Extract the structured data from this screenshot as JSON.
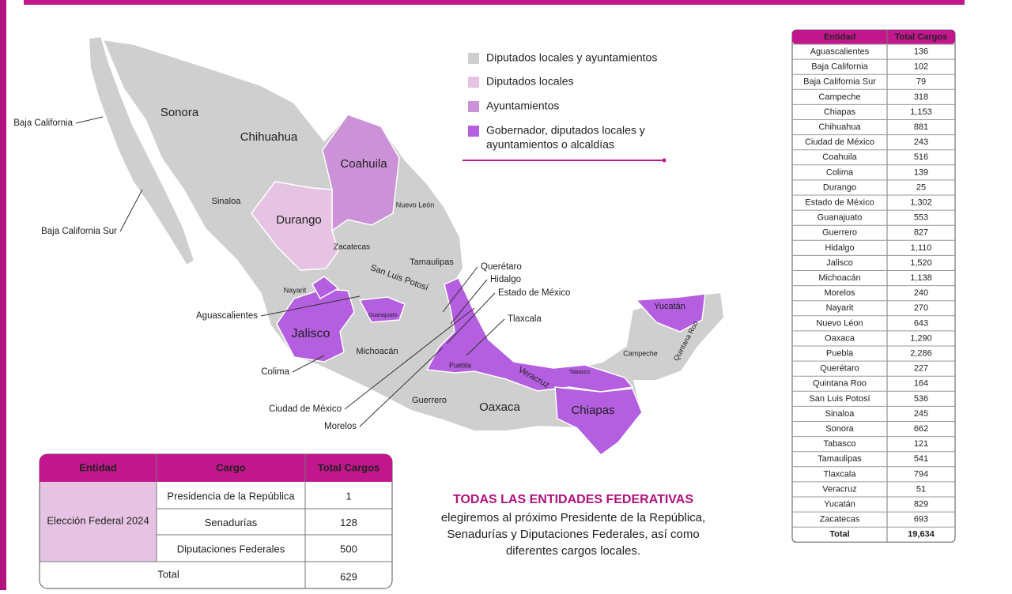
{
  "legend": [
    {
      "label": "Diputados locales y ayuntamientos",
      "color": "#cfcfcf"
    },
    {
      "label": "Diputados locales",
      "color": "#e6c3e2"
    },
    {
      "label": "Ayuntamientos",
      "color": "#cc92d8"
    },
    {
      "label": "Gobernador, diputados locales y",
      "label2": "ayuntamientos o alcaldías",
      "color": "#b45ee0"
    }
  ],
  "map": {
    "labels": [
      "Sonora",
      "Chihuahua",
      "Coahuila",
      "Durango",
      "Sinaloa",
      "Nuevo León",
      "Zacatecas",
      "Tamaulipas",
      "San Luis Potosí",
      "Nayarit",
      "Guanajuato",
      "Jalisco",
      "Michoacán",
      "Puebla",
      "Veracruz",
      "Tabasco",
      "Chiapas",
      "Oaxaca",
      "Guerrero",
      "Campeche",
      "Yucatán",
      "Quintana Roo"
    ],
    "callouts": [
      "Baja California",
      "Baja California Sur",
      "Aguascalientes",
      "Colima",
      "Ciudad de México",
      "Morelos",
      "Querétaro",
      "Hidalgo",
      "Estado de México",
      "Tlaxcala"
    ]
  },
  "state_table": {
    "header": [
      "Entidad",
      "Total Cargos"
    ],
    "rows": [
      [
        "Aguascalientes",
        "136"
      ],
      [
        "Baja California",
        "102"
      ],
      [
        "Baja California Sur",
        "79"
      ],
      [
        "Campeche",
        "318"
      ],
      [
        "Chiapas",
        "1,153"
      ],
      [
        "Chihuahua",
        "881"
      ],
      [
        "Ciudad de México",
        "243"
      ],
      [
        "Coahuila",
        "516"
      ],
      [
        "Colima",
        "139"
      ],
      [
        "Durango",
        "25"
      ],
      [
        "Estado de México",
        "1,302"
      ],
      [
        "Guanajuato",
        "553"
      ],
      [
        "Guerrero",
        "827"
      ],
      [
        "Hidalgo",
        "1,110"
      ],
      [
        "Jalisco",
        "1,520"
      ],
      [
        "Michoacán",
        "1,138"
      ],
      [
        "Morelos",
        "240"
      ],
      [
        "Nayarit",
        "270"
      ],
      [
        "Nuevo Léon",
        "643"
      ],
      [
        "Oaxaca",
        "1,290"
      ],
      [
        "Puebla",
        "2,286"
      ],
      [
        "Querétaro",
        "227"
      ],
      [
        "Quintana Roo",
        "164"
      ],
      [
        "San Luis Potosí",
        "536"
      ],
      [
        "Sinaloa",
        "245"
      ],
      [
        "Sonora",
        "662"
      ],
      [
        "Tabasco",
        "121"
      ],
      [
        "Tamaulipas",
        "541"
      ],
      [
        "Tlaxcala",
        "794"
      ],
      [
        "Veracruz",
        "51"
      ],
      [
        "Yucatán",
        "829"
      ],
      [
        "Zacatecas",
        "693"
      ]
    ],
    "total": [
      "Total",
      "19,634"
    ]
  },
  "federal_table": {
    "header": [
      "Entidad",
      "Cargo",
      "Total Cargos"
    ],
    "entity": "Elección Federal 2024",
    "rows": [
      [
        "Presidencia de la República",
        "1"
      ],
      [
        "Senadurías",
        "128"
      ],
      [
        "Diputaciones Federales",
        "500"
      ]
    ],
    "total": [
      "Total",
      "629"
    ]
  },
  "message": {
    "title": "TODAS LAS ENTIDADES FEDERATIVAS",
    "lines": [
      "elegiremos al próximo Presidente de la República,",
      "Senadurías y Diputaciones Federales, así como",
      "diferentes cargos locales."
    ]
  }
}
